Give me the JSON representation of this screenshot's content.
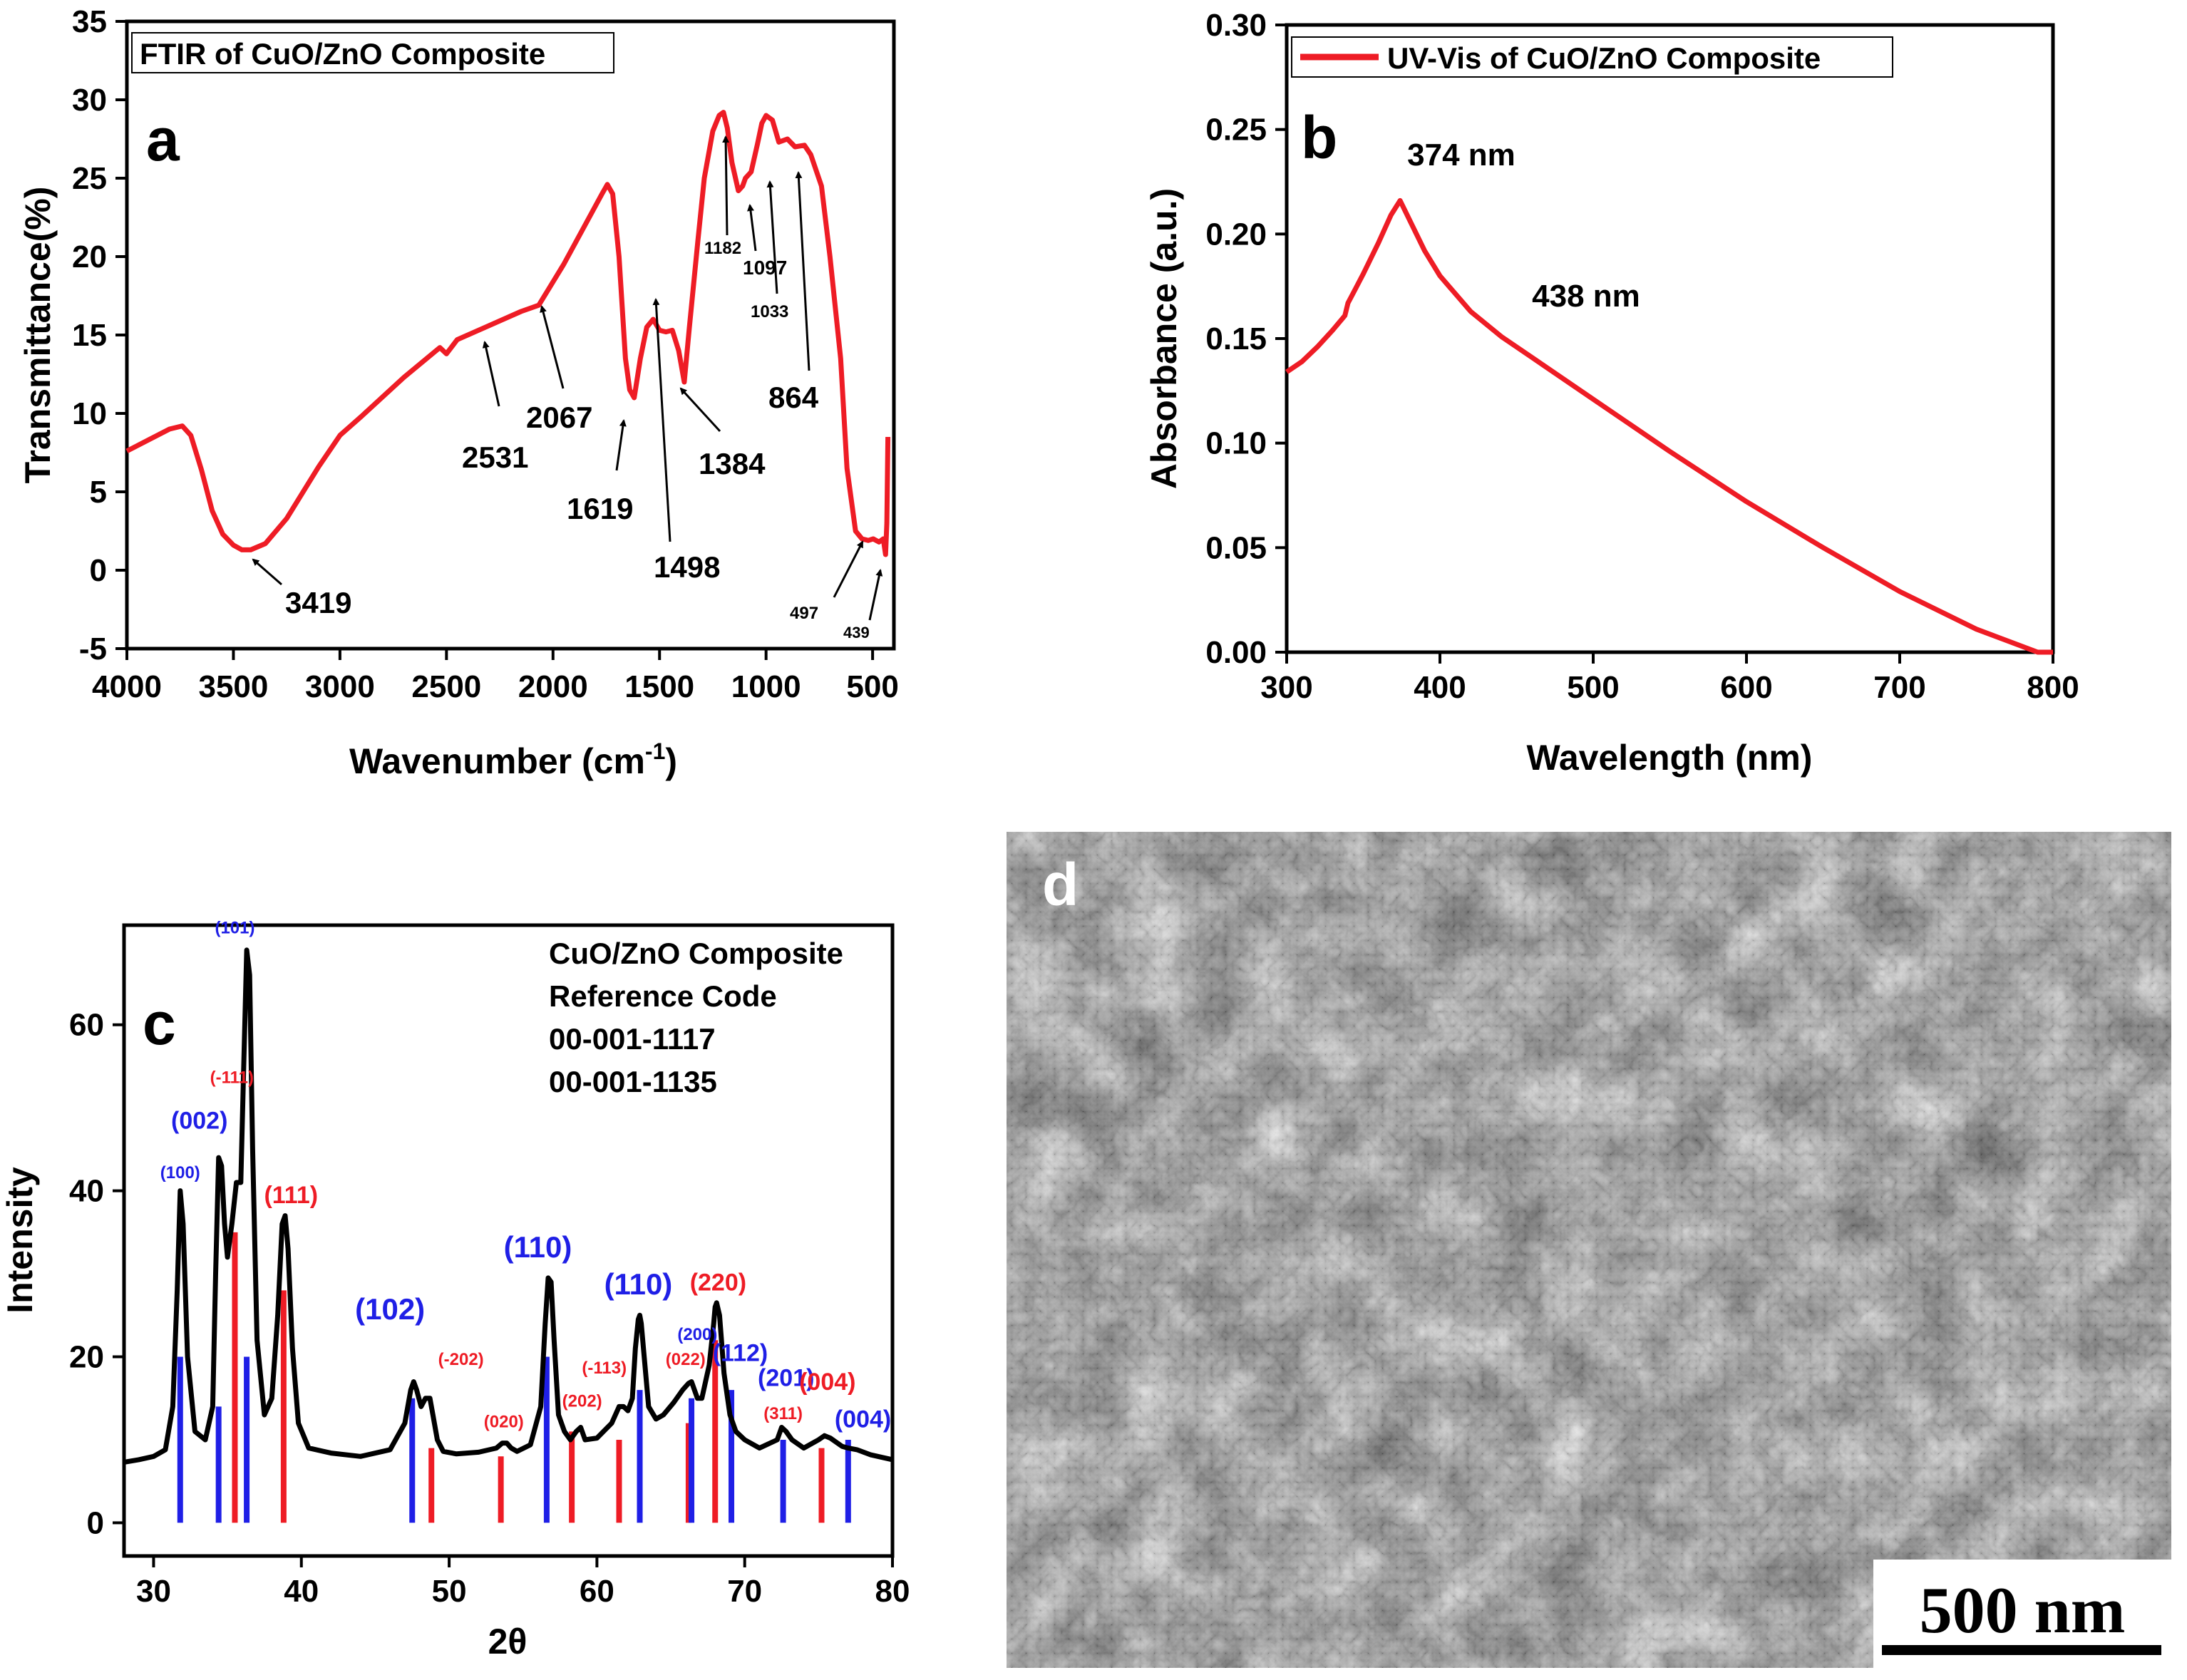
{
  "chart_data": [
    {
      "panel": "a",
      "type": "line",
      "legend": "FTIR of CuO/ZnO Composite",
      "xlabel": "Wavenumber (cm",
      "xlabel_sup": "-1",
      "xlabel_end": ")",
      "ylabel": "Transmittance(%)",
      "xlim": [
        4000,
        400
      ],
      "ylim": [
        -5,
        35
      ],
      "xticks": [
        4000,
        3500,
        3000,
        2500,
        2000,
        1500,
        1000,
        500
      ],
      "yticks": [
        -5,
        0,
        5,
        10,
        15,
        20,
        25,
        30,
        35
      ],
      "color": "#ee1c25",
      "x": [
        4000,
        3900,
        3800,
        3740,
        3700,
        3650,
        3600,
        3550,
        3500,
        3460,
        3419,
        3350,
        3250,
        3100,
        3000,
        2900,
        2700,
        2531,
        2500,
        2450,
        2300,
        2150,
        2067,
        1950,
        1850,
        1770,
        1745,
        1720,
        1690,
        1660,
        1640,
        1619,
        1590,
        1560,
        1530,
        1500,
        1470,
        1440,
        1410,
        1384,
        1360,
        1320,
        1290,
        1250,
        1220,
        1200,
        1182,
        1160,
        1130,
        1110,
        1097,
        1070,
        1040,
        1020,
        1000,
        970,
        940,
        900,
        864,
        820,
        790,
        740,
        700,
        650,
        620,
        580,
        550,
        520,
        497,
        470,
        450,
        439,
        433,
        428
      ],
      "y": [
        7.6,
        8.3,
        9.0,
        9.2,
        8.6,
        6.4,
        3.8,
        2.3,
        1.6,
        1.3,
        1.3,
        1.7,
        3.3,
        6.6,
        8.6,
        9.8,
        12.3,
        14.2,
        13.8,
        14.7,
        15.6,
        16.5,
        16.9,
        19.5,
        22.0,
        24.0,
        24.6,
        24.0,
        20.0,
        13.5,
        11.5,
        11.0,
        13.5,
        15.5,
        16.0,
        15.3,
        15.2,
        15.3,
        14.0,
        12.0,
        15.5,
        21.0,
        25.0,
        28.0,
        29.0,
        29.2,
        28.2,
        26.0,
        24.2,
        24.5,
        25.0,
        25.4,
        27.2,
        28.5,
        29.0,
        28.7,
        27.3,
        27.5,
        27.0,
        27.1,
        26.5,
        24.5,
        20.0,
        13.5,
        6.5,
        2.5,
        2.0,
        1.9,
        2.0,
        1.8,
        2.0,
        1.0,
        3.0,
        8.5
      ],
      "annotations": [
        {
          "label": "3419",
          "x": 3419
        },
        {
          "label": "2531",
          "x": 2531
        },
        {
          "label": "2067",
          "x": 2067
        },
        {
          "label": "1619",
          "x": 1619
        },
        {
          "label": "1498",
          "x": 1498
        },
        {
          "label": "1384",
          "x": 1384
        },
        {
          "label": "1182",
          "x": 1182
        },
        {
          "label": "1097",
          "x": 1097
        },
        {
          "label": "1033",
          "x": 1033
        },
        {
          "label": "864",
          "x": 864
        },
        {
          "label": "497",
          "x": 497
        },
        {
          "label": "439",
          "x": 439
        }
      ]
    },
    {
      "panel": "b",
      "type": "line",
      "legend": "UV-Vis of CuO/ZnO Composite",
      "xlabel": "Wavelength (nm)",
      "ylabel": "Absorbance (a.u.)",
      "xlim": [
        300,
        800
      ],
      "ylim": [
        0.0,
        0.3
      ],
      "xticks": [
        300,
        400,
        500,
        600,
        700,
        800
      ],
      "yticks": [
        "0.00",
        "0.05",
        "0.10",
        "0.15",
        "0.20",
        "0.25",
        "0.30"
      ],
      "color": "#ee1c25",
      "x": [
        300,
        310,
        320,
        330,
        338,
        340,
        345,
        350,
        360,
        368,
        374,
        380,
        390,
        400,
        420,
        440,
        460,
        500,
        550,
        600,
        650,
        700,
        750,
        790,
        800
      ],
      "y": [
        0.134,
        0.139,
        0.146,
        0.154,
        0.161,
        0.167,
        0.174,
        0.181,
        0.196,
        0.209,
        0.216,
        0.207,
        0.192,
        0.18,
        0.163,
        0.151,
        0.141,
        0.121,
        0.096,
        0.072,
        0.05,
        0.029,
        0.011,
        0.0,
        0.0
      ],
      "annotations": [
        {
          "label": "374 nm",
          "x": 374
        },
        {
          "label": "438 nm",
          "x": 438
        }
      ]
    },
    {
      "panel": "c",
      "type": "line",
      "xlabel": "2θ",
      "ylabel": "Intensity",
      "xlim": [
        28,
        80
      ],
      "ylim": [
        -4,
        72
      ],
      "xticks": [
        30,
        40,
        50,
        60,
        70,
        80
      ],
      "yticks": [
        0,
        20,
        40,
        60
      ],
      "info": [
        "CuO/ZnO Composite",
        "Reference Code",
        "00-001-1117",
        "00-001-1135"
      ],
      "series": [
        {
          "name": "CuO/ZnO Composite",
          "color": "#000000",
          "x": [
            28,
            29,
            30,
            30.8,
            31.3,
            31.6,
            31.8,
            32.0,
            32.3,
            32.8,
            33.5,
            34.0,
            34.2,
            34.4,
            34.6,
            34.8,
            35.0,
            35.3,
            35.6,
            35.9,
            36.1,
            36.3,
            36.5,
            36.7,
            37.0,
            37.5,
            38.0,
            38.4,
            38.7,
            38.9,
            39.1,
            39.4,
            39.8,
            40.5,
            42,
            44,
            46,
            47.0,
            47.4,
            47.6,
            47.8,
            48.1,
            48.4,
            48.7,
            48.9,
            49.2,
            49.6,
            50.5,
            52,
            53.2,
            53.6,
            53.9,
            54.2,
            54.6,
            55.5,
            56.2,
            56.5,
            56.7,
            56.9,
            57.1,
            57.4,
            57.8,
            58.2,
            58.6,
            58.9,
            59.2,
            60,
            61,
            61.5,
            61.8,
            62.1,
            62.4,
            62.6,
            62.8,
            62.9,
            63.0,
            63.2,
            63.5,
            64.0,
            64.5,
            65.2,
            65.8,
            66.2,
            66.4,
            66.6,
            66.8,
            67.1,
            67.6,
            67.9,
            68.0,
            68.1,
            68.3,
            68.6,
            69.0,
            69.4,
            70,
            71,
            72.2,
            72.5,
            72.8,
            73.2,
            74,
            75.0,
            75.4,
            75.8,
            76.6,
            77.0,
            77.6,
            78.5,
            80
          ],
          "y": [
            7.3,
            7.6,
            8.0,
            8.8,
            14.0,
            28.0,
            40.0,
            36.0,
            20.0,
            11.0,
            10.0,
            14.0,
            30.0,
            44.0,
            43.0,
            36.0,
            32.0,
            36.0,
            41.0,
            41.0,
            55.0,
            69.0,
            66.0,
            45.0,
            22.0,
            13.0,
            15.0,
            25.0,
            36.0,
            37.0,
            33.0,
            21.0,
            12.0,
            9.0,
            8.4,
            8.0,
            8.8,
            12.0,
            16.0,
            17.0,
            16.0,
            14.0,
            15.0,
            15.0,
            13.0,
            10.0,
            8.6,
            8.3,
            8.5,
            9.0,
            9.6,
            9.6,
            9.0,
            8.6,
            9.4,
            14.0,
            24.0,
            29.5,
            29.0,
            22.0,
            13.0,
            11.0,
            10.0,
            11.0,
            11.5,
            10.0,
            10.2,
            12.0,
            14.0,
            14.0,
            13.5,
            15.0,
            21.0,
            24.5,
            25.0,
            24.0,
            20.0,
            14.0,
            12.5,
            13.0,
            14.5,
            16.0,
            16.8,
            17.0,
            16.0,
            15.0,
            15.0,
            19.0,
            24.0,
            26.0,
            26.5,
            25.0,
            18.0,
            13.0,
            11.0,
            10.0,
            9.0,
            10.0,
            11.5,
            11.0,
            10.0,
            9.0,
            10.0,
            10.5,
            10.2,
            9.2,
            9.0,
            8.8,
            8.2,
            7.6
          ]
        }
      ],
      "ref_lines": [
        {
          "x": 31.8,
          "h": 20,
          "color": "#1f1fe6"
        },
        {
          "x": 34.4,
          "h": 14,
          "color": "#1f1fe6"
        },
        {
          "x": 35.5,
          "h": 35,
          "color": "#ee1c25"
        },
        {
          "x": 36.3,
          "h": 20,
          "color": "#1f1fe6"
        },
        {
          "x": 38.8,
          "h": 28,
          "color": "#ee1c25"
        },
        {
          "x": 47.5,
          "h": 15,
          "color": "#1f1fe6"
        },
        {
          "x": 48.8,
          "h": 9,
          "color": "#ee1c25"
        },
        {
          "x": 53.5,
          "h": 8,
          "color": "#ee1c25"
        },
        {
          "x": 56.6,
          "h": 20,
          "color": "#1f1fe6"
        },
        {
          "x": 58.3,
          "h": 11,
          "color": "#ee1c25"
        },
        {
          "x": 61.5,
          "h": 10,
          "color": "#ee1c25"
        },
        {
          "x": 62.9,
          "h": 16,
          "color": "#1f1fe6"
        },
        {
          "x": 66.2,
          "h": 12,
          "color": "#ee1c25"
        },
        {
          "x": 66.4,
          "h": 15,
          "color": "#1f1fe6"
        },
        {
          "x": 68.0,
          "h": 22,
          "color": "#ee1c25"
        },
        {
          "x": 69.1,
          "h": 16,
          "color": "#1f1fe6"
        },
        {
          "x": 72.6,
          "h": 10,
          "color": "#1f1fe6"
        },
        {
          "x": 75.2,
          "h": 9,
          "color": "#ee1c25"
        },
        {
          "x": 77.0,
          "h": 10,
          "color": "#1f1fe6"
        }
      ],
      "peak_labels": [
        {
          "text": "(100)",
          "color": "#1f1fe6",
          "x": 31.8,
          "y": 41.5,
          "size": "small"
        },
        {
          "text": "(002)",
          "color": "#1f1fe6",
          "x": 33.1,
          "y": 47.5,
          "size": "medium"
        },
        {
          "text": "(-111)",
          "color": "#ee1c25",
          "x": 35.3,
          "y": 53.0,
          "size": "small"
        },
        {
          "text": "(101)",
          "color": "#1f1fe6",
          "x": 35.5,
          "y": 71.0,
          "size": "small"
        },
        {
          "text": "(111)",
          "color": "#ee1c25",
          "x": 39.3,
          "y": 38.5,
          "size": "medium"
        },
        {
          "text": "(102)",
          "color": "#1f1fe6",
          "x": 46.0,
          "y": 24.5,
          "size": "large"
        },
        {
          "text": "(-202)",
          "color": "#ee1c25",
          "x": 50.8,
          "y": 19.0,
          "size": "small"
        },
        {
          "text": "(110)",
          "color": "#1f1fe6",
          "x": 56.0,
          "y": 32.0,
          "size": "large"
        },
        {
          "text": "(020)",
          "color": "#ee1c25",
          "x": 53.7,
          "y": 11.5,
          "size": "small"
        },
        {
          "text": "(202)",
          "color": "#ee1c25",
          "x": 59.0,
          "y": 14.0,
          "size": "small"
        },
        {
          "text": "(-113)",
          "color": "#ee1c25",
          "x": 60.5,
          "y": 18.0,
          "size": "small"
        },
        {
          "text": "(110)",
          "color": "#1f1fe6",
          "x": 62.8,
          "y": 27.5,
          "size": "large"
        },
        {
          "text": "(220)",
          "color": "#ee1c25",
          "x": 68.2,
          "y": 28.0,
          "size": "medium"
        },
        {
          "text": "(200)",
          "color": "#1f1fe6",
          "x": 66.8,
          "y": 22.0,
          "size": "small"
        },
        {
          "text": "(022)",
          "color": "#ee1c25",
          "x": 66.0,
          "y": 19.0,
          "size": "small"
        },
        {
          "text": "(112)",
          "color": "#1f1fe6",
          "x": 69.7,
          "y": 19.5,
          "size": "medium"
        },
        {
          "text": "(201)",
          "color": "#1f1fe6",
          "x": 72.8,
          "y": 16.5,
          "size": "medium"
        },
        {
          "text": "(311)",
          "color": "#ee1c25",
          "x": 72.6,
          "y": 12.5,
          "size": "small"
        },
        {
          "text": "(004)",
          "color": "#ee1c25",
          "x": 75.6,
          "y": 16.0,
          "size": "medium"
        },
        {
          "text": "(004)",
          "color": "#1f1fe6",
          "x": 78.0,
          "y": 11.5,
          "size": "medium"
        }
      ]
    }
  ],
  "panel_labels": {
    "a": "a",
    "b": "b",
    "c": "c",
    "d": "d"
  },
  "sem": {
    "scale_bar": "500 nm"
  }
}
